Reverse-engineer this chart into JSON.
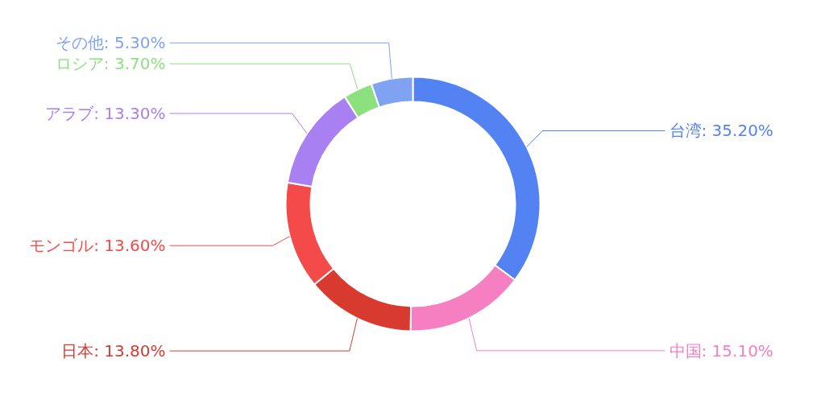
{
  "chart_data": {
    "type": "donut",
    "categories": [
      "台湾",
      "中国",
      "日本",
      "モンゴル",
      "アラブ",
      "ロシア",
      "その他"
    ],
    "values": [
      35.2,
      15.1,
      13.8,
      13.6,
      13.3,
      3.7,
      5.3
    ],
    "value_labels": [
      "35.20%",
      "15.10%",
      "13.80%",
      "13.60%",
      "13.30%",
      "3.70%",
      "5.30%"
    ],
    "colors": [
      "#5383f2",
      "#f57fc0",
      "#d93a30",
      "#f44a4a",
      "#a880f2",
      "#8de07e",
      "#7fa3f2"
    ]
  }
}
